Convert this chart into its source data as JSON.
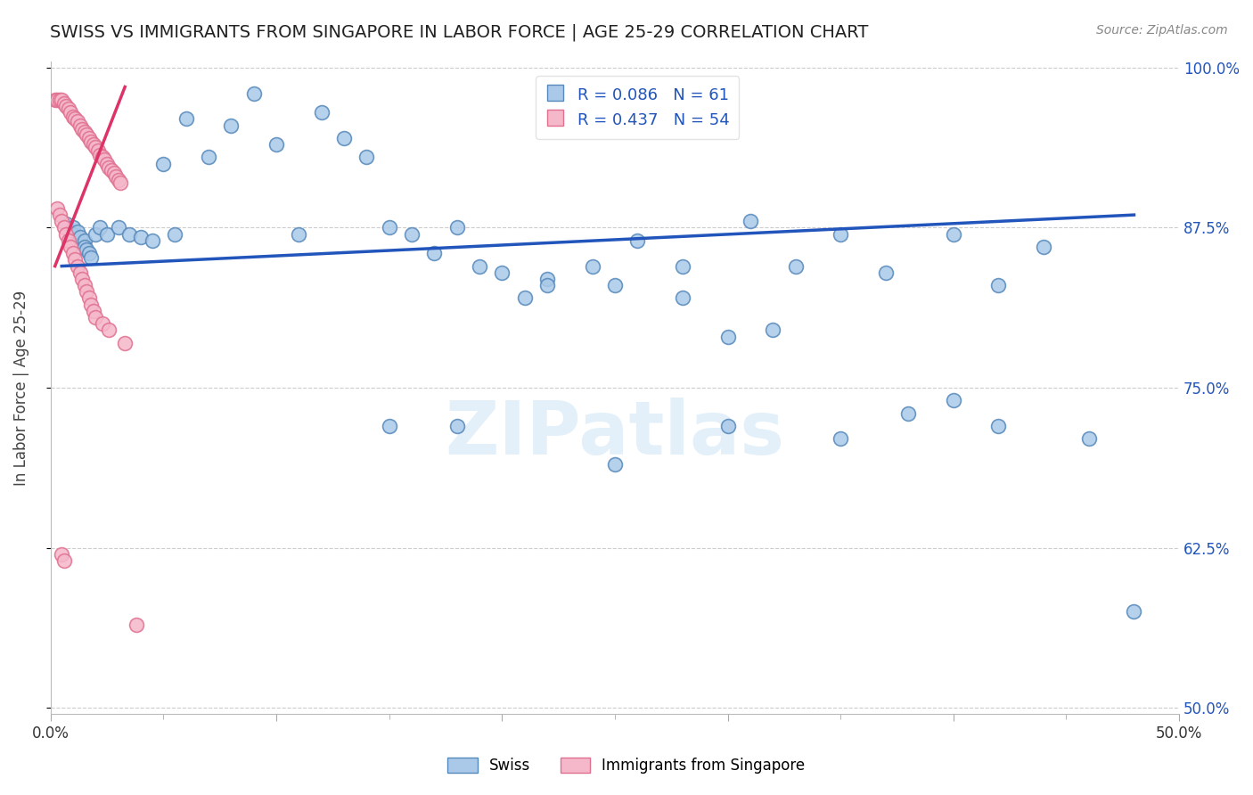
{
  "title": "SWISS VS IMMIGRANTS FROM SINGAPORE IN LABOR FORCE | AGE 25-29 CORRELATION CHART",
  "source": "Source: ZipAtlas.com",
  "ylabel": "In Labor Force | Age 25-29",
  "xlim": [
    0.0,
    0.5
  ],
  "ylim": [
    0.495,
    1.005
  ],
  "ytick_positions": [
    0.5,
    0.625,
    0.75,
    0.875,
    1.0
  ],
  "ytick_labels": [
    "50.0%",
    "62.5%",
    "75.0%",
    "87.5%",
    "100.0%"
  ],
  "swiss_color": "#aac9e8",
  "swiss_edge": "#5588bb",
  "pink_color": "#f5b8cb",
  "pink_edge": "#e07090",
  "blue_line_color": "#2255bb",
  "pink_line_color": "#dd3366",
  "R_swiss": 0.086,
  "N_swiss": 61,
  "R_pink": 0.437,
  "N_pink": 54,
  "grid_color": "#cccccc",
  "background": "#ffffff",
  "swiss_x": [
    0.007,
    0.01,
    0.01,
    0.012,
    0.013,
    0.015,
    0.015,
    0.016,
    0.017,
    0.018,
    0.02,
    0.022,
    0.025,
    0.03,
    0.035,
    0.04,
    0.045,
    0.05,
    0.055,
    0.06,
    0.07,
    0.08,
    0.09,
    0.1,
    0.11,
    0.12,
    0.13,
    0.14,
    0.15,
    0.16,
    0.17,
    0.18,
    0.19,
    0.2,
    0.21,
    0.22,
    0.24,
    0.25,
    0.26,
    0.28,
    0.3,
    0.31,
    0.33,
    0.35,
    0.37,
    0.4,
    0.42,
    0.44,
    0.46,
    0.48,
    0.22,
    0.28,
    0.32,
    0.38,
    0.42,
    0.35,
    0.15,
    0.18,
    0.25,
    0.3,
    0.4
  ],
  "swiss_y": [
    0.878,
    0.875,
    0.87,
    0.872,
    0.868,
    0.865,
    0.86,
    0.858,
    0.855,
    0.852,
    0.87,
    0.875,
    0.87,
    0.875,
    0.87,
    0.868,
    0.865,
    0.925,
    0.87,
    0.96,
    0.93,
    0.955,
    0.98,
    0.94,
    0.87,
    0.965,
    0.945,
    0.93,
    0.875,
    0.87,
    0.855,
    0.875,
    0.845,
    0.84,
    0.82,
    0.835,
    0.845,
    0.83,
    0.865,
    0.845,
    0.79,
    0.88,
    0.845,
    0.87,
    0.84,
    0.87,
    0.83,
    0.86,
    0.71,
    0.575,
    0.83,
    0.82,
    0.795,
    0.73,
    0.72,
    0.71,
    0.72,
    0.72,
    0.69,
    0.72,
    0.74
  ],
  "pink_x": [
    0.002,
    0.003,
    0.004,
    0.005,
    0.006,
    0.007,
    0.008,
    0.009,
    0.01,
    0.011,
    0.012,
    0.013,
    0.014,
    0.015,
    0.016,
    0.017,
    0.018,
    0.019,
    0.02,
    0.021,
    0.022,
    0.023,
    0.024,
    0.025,
    0.026,
    0.027,
    0.028,
    0.029,
    0.03,
    0.031,
    0.003,
    0.004,
    0.005,
    0.006,
    0.007,
    0.008,
    0.009,
    0.01,
    0.011,
    0.012,
    0.013,
    0.014,
    0.015,
    0.016,
    0.017,
    0.018,
    0.019,
    0.02,
    0.023,
    0.026,
    0.005,
    0.006,
    0.033,
    0.038
  ],
  "pink_y": [
    0.975,
    0.975,
    0.975,
    0.975,
    0.972,
    0.97,
    0.968,
    0.965,
    0.962,
    0.96,
    0.958,
    0.955,
    0.952,
    0.95,
    0.948,
    0.945,
    0.942,
    0.94,
    0.938,
    0.935,
    0.932,
    0.93,
    0.928,
    0.925,
    0.922,
    0.92,
    0.918,
    0.915,
    0.912,
    0.91,
    0.89,
    0.885,
    0.88,
    0.875,
    0.87,
    0.865,
    0.86,
    0.855,
    0.85,
    0.845,
    0.84,
    0.835,
    0.83,
    0.825,
    0.82,
    0.815,
    0.81,
    0.805,
    0.8,
    0.795,
    0.62,
    0.615,
    0.785,
    0.565
  ],
  "blue_trend_x": [
    0.005,
    0.48
  ],
  "blue_trend_y": [
    0.845,
    0.885
  ],
  "pink_trend_x": [
    0.002,
    0.033
  ],
  "pink_trend_y": [
    0.845,
    0.985
  ]
}
